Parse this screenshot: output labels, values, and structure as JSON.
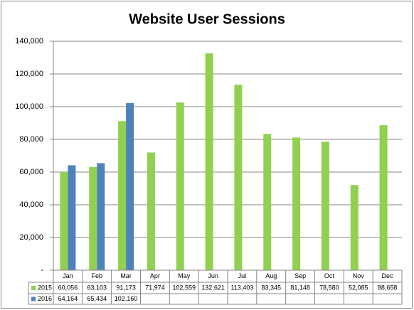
{
  "chart_data": {
    "type": "bar",
    "title": "Website User Sessions",
    "categories": [
      "Jan",
      "Feb",
      "Mar",
      "Apr",
      "May",
      "Jun",
      "Jul",
      "Aug",
      "Sep",
      "Oct",
      "Nov",
      "Dec"
    ],
    "series": [
      {
        "name": "2015",
        "color": "#92d050",
        "values": [
          60056,
          63103,
          91173,
          71974,
          102559,
          132621,
          113403,
          83345,
          81148,
          78580,
          52085,
          88658
        ],
        "value_labels": [
          "60,056",
          "63,103",
          "91,173",
          "71,974",
          "102,559",
          "132,621",
          "113,403",
          "83,345",
          "81,148",
          "78,580",
          "52,085",
          "88,658"
        ]
      },
      {
        "name": "2016",
        "color": "#4f81bd",
        "values": [
          64164,
          65434,
          102160,
          null,
          null,
          null,
          null,
          null,
          null,
          null,
          null,
          null
        ],
        "value_labels": [
          "64,164",
          "65,434",
          "102,160",
          null,
          null,
          null,
          null,
          null,
          null,
          null,
          null,
          null
        ]
      }
    ],
    "ylim": [
      0,
      140000
    ],
    "yticks": [
      {
        "value": 0,
        "label": "-"
      },
      {
        "value": 20000,
        "label": "20,000"
      },
      {
        "value": 40000,
        "label": "40,000"
      },
      {
        "value": 60000,
        "label": "60,000"
      },
      {
        "value": 80000,
        "label": "80,000"
      },
      {
        "value": 100000,
        "label": "100,000"
      },
      {
        "value": 120000,
        "label": "120,000"
      },
      {
        "value": 140000,
        "label": "140,000"
      }
    ],
    "grid": true,
    "data_table": true
  }
}
